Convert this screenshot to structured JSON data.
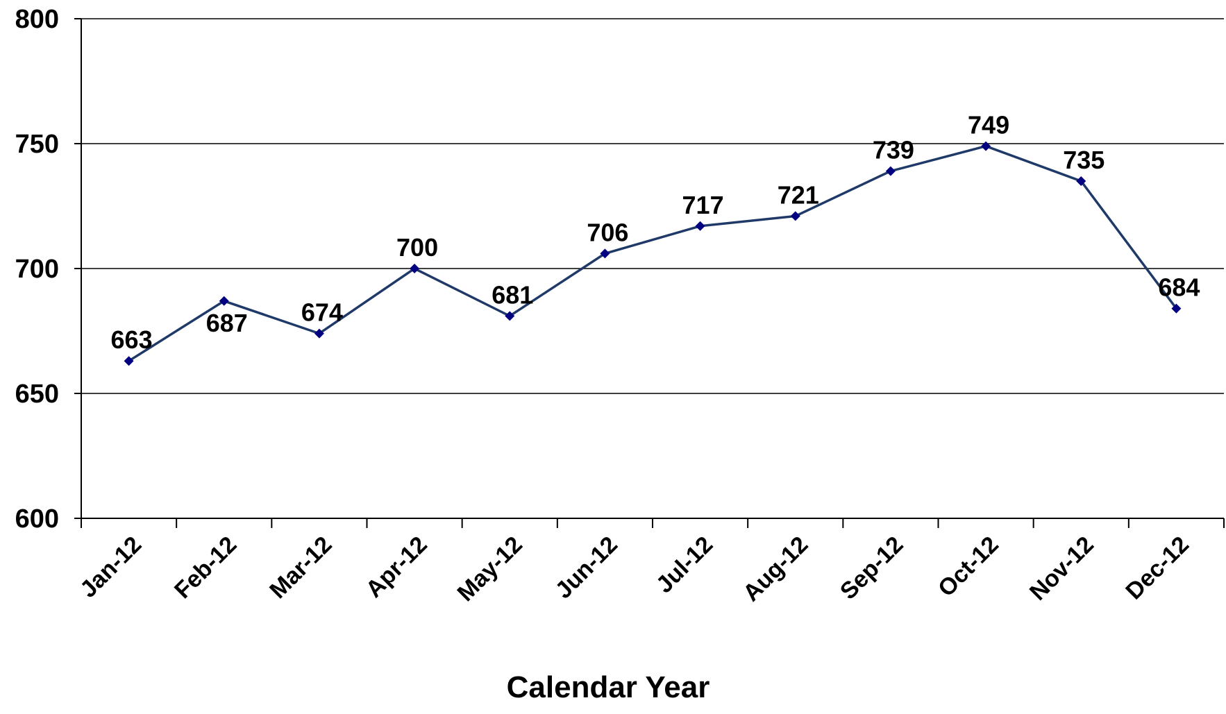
{
  "chart_data": {
    "type": "line",
    "x_label": "Calendar Year",
    "categories": [
      "Jan-12",
      "Feb-12",
      "Mar-12",
      "Apr-12",
      "May-12",
      "Jun-12",
      "Jul-12",
      "Aug-12",
      "Sep-12",
      "Oct-12",
      "Nov-12",
      "Dec-12"
    ],
    "series": [
      {
        "color": "#1f3a68",
        "marker_color": "#000080",
        "values": [
          663,
          687,
          674,
          700,
          681,
          706,
          717,
          721,
          739,
          749,
          735,
          684
        ]
      }
    ],
    "ylim": [
      600,
      800
    ],
    "yticks": [
      600,
      650,
      700,
      750,
      800
    ],
    "grid": true
  }
}
